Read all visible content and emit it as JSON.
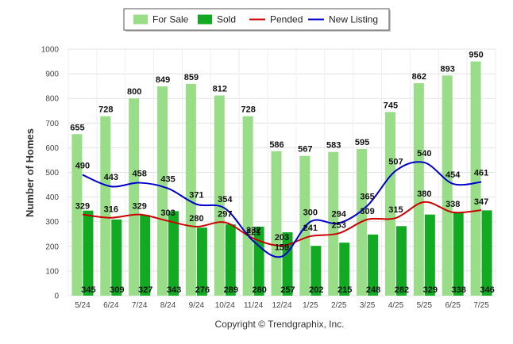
{
  "chart_data": {
    "type": "bar",
    "title": "",
    "ylabel": "Number of Homes",
    "xlabel": "",
    "ylim": [
      0,
      1000
    ],
    "yticks": [
      0,
      100,
      200,
      300,
      400,
      500,
      600,
      700,
      800,
      900,
      1000
    ],
    "grid": true,
    "legend_position": "top-center",
    "categories": [
      "5/24",
      "6/24",
      "7/24",
      "8/24",
      "9/24",
      "10/24",
      "11/24",
      "12/24",
      "1/25",
      "2/25",
      "3/25",
      "4/25",
      "5/25",
      "6/25",
      "7/25"
    ],
    "series": [
      {
        "name": "For Sale",
        "kind": "bar",
        "color": "#99dd88",
        "values": [
          655,
          728,
          800,
          849,
          859,
          812,
          728,
          586,
          567,
          583,
          595,
          745,
          862,
          893,
          950
        ]
      },
      {
        "name": "Sold",
        "kind": "bar",
        "color": "#11aa22",
        "values": [
          345,
          309,
          327,
          343,
          276,
          289,
          280,
          257,
          202,
          215,
          248,
          282,
          329,
          338,
          346
        ]
      },
      {
        "name": "Pended",
        "kind": "line",
        "color": "#cc0000",
        "values": [
          329,
          316,
          329,
          303,
          280,
          297,
          232,
          203,
          241,
          253,
          309,
          315,
          380,
          338,
          347
        ]
      },
      {
        "name": "New Listing",
        "kind": "line",
        "color": "#0000cc",
        "values": [
          490,
          443,
          458,
          435,
          371,
          354,
          221,
          159,
          300,
          294,
          365,
          507,
          540,
          454,
          461
        ]
      }
    ]
  },
  "copyright": "Copyright © Trendgraphix, Inc."
}
